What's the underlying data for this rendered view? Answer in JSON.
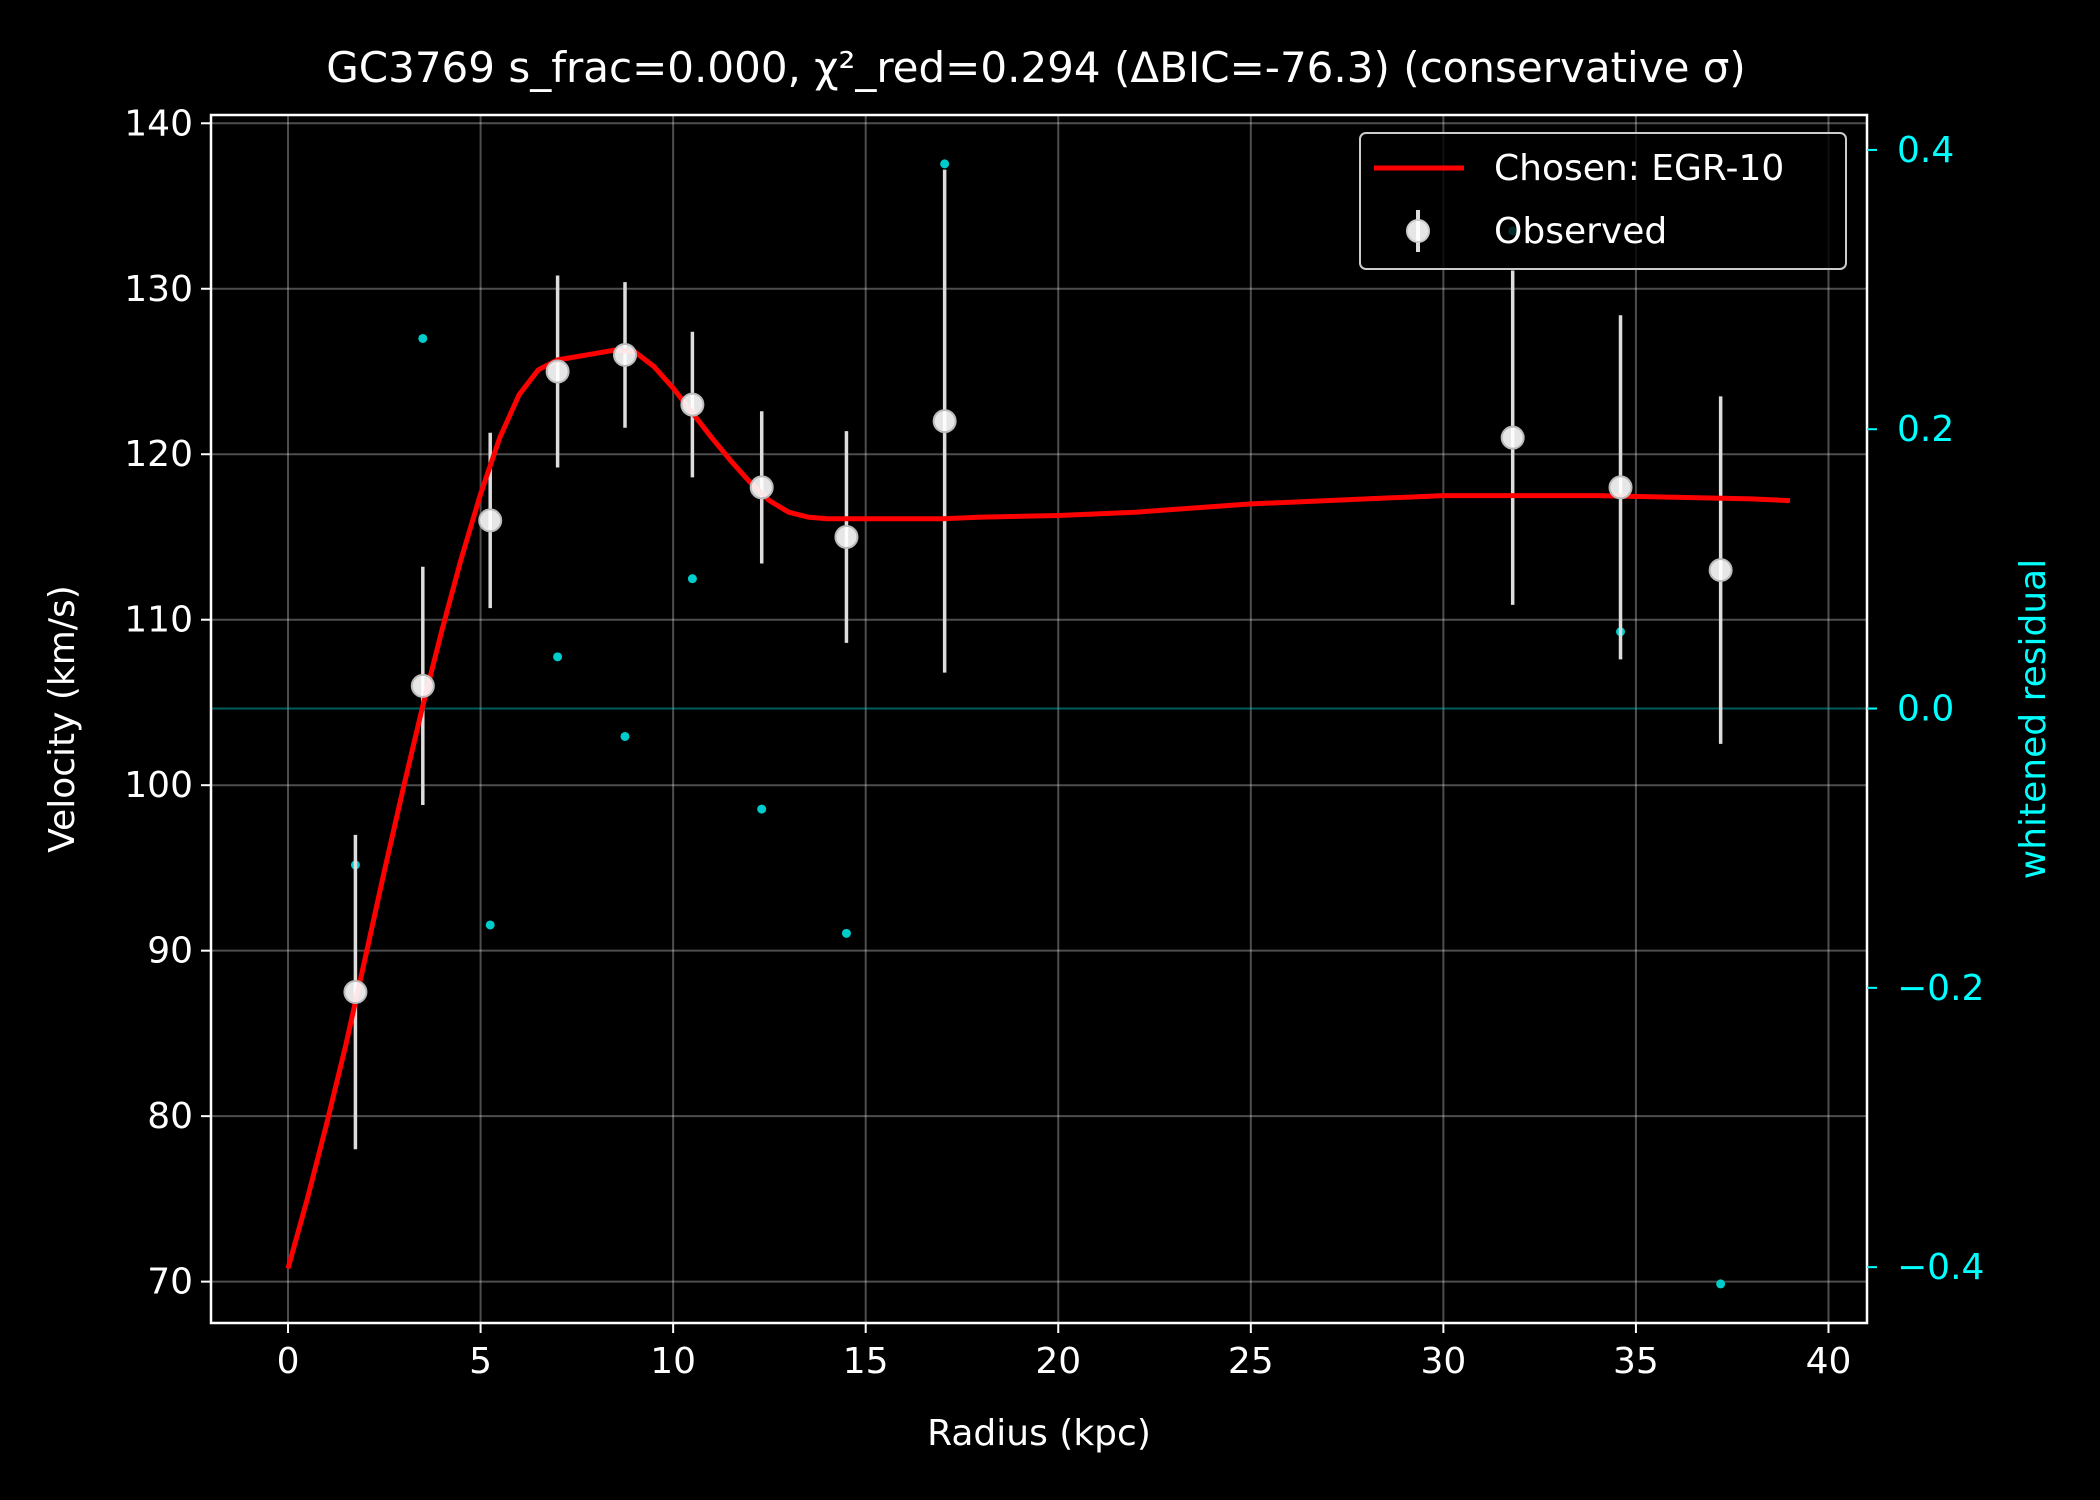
{
  "chart_data": {
    "type": "line",
    "title": "GC3769  s_frac=0.000, χ²_red=0.294  (ΔBIC=-76.3) (conservative σ)",
    "xlabel": "Radius (kpc)",
    "ylabel": "Velocity (km/s)",
    "y2label": "whitened residual",
    "xlim": [
      -2,
      41
    ],
    "ylim": [
      67.5,
      140.5
    ],
    "y2lim": [
      -0.44,
      0.425
    ],
    "xticks": [
      0,
      5,
      10,
      15,
      20,
      25,
      30,
      35,
      40
    ],
    "yticks": [
      70,
      80,
      90,
      100,
      110,
      120,
      130,
      140
    ],
    "y2ticks": [
      0.4,
      0.2,
      0.0,
      -0.2,
      -0.4
    ],
    "y2ticklabels": [
      "0.4",
      "0.2",
      "0.0",
      "−0.2",
      "−0.4"
    ],
    "grid": true,
    "legend_position": "top-right",
    "colors": {
      "background": "#000000",
      "fit": "#ff0000",
      "observed": "#ffffff",
      "residual": "#00cccc",
      "right_axis": "#00ffff",
      "text": "#ffffff"
    },
    "series": [
      {
        "name": "Chosen: EGR-10",
        "kind": "line",
        "x": [
          0,
          0.5,
          1,
          1.5,
          2,
          2.5,
          3,
          3.5,
          4,
          4.5,
          5,
          5.5,
          6,
          6.5,
          7,
          7.5,
          8,
          8.5,
          9,
          9.5,
          10,
          10.5,
          11,
          11.5,
          12,
          12.5,
          13,
          13.5,
          14,
          14.5,
          15,
          16,
          17,
          18,
          20,
          22,
          25,
          28,
          30,
          32,
          34,
          36,
          38,
          39
        ],
        "y": [
          70.8,
          75.0,
          79.5,
          84.3,
          89.5,
          94.8,
          99.9,
          104.8,
          109.4,
          113.7,
          117.6,
          121.0,
          123.6,
          125.1,
          125.7,
          125.9,
          126.1,
          126.3,
          126.2,
          125.3,
          124.0,
          122.5,
          121.0,
          119.6,
          118.3,
          117.2,
          116.5,
          116.2,
          116.1,
          116.1,
          116.1,
          116.1,
          116.1,
          116.2,
          116.3,
          116.5,
          117.0,
          117.3,
          117.5,
          117.5,
          117.5,
          117.4,
          117.3,
          117.2
        ]
      },
      {
        "name": "Observed",
        "kind": "errorbar",
        "x": [
          1.75,
          3.5,
          5.25,
          7.0,
          8.75,
          10.5,
          12.3,
          14.5,
          17.05,
          31.8,
          34.6,
          37.2
        ],
        "y": [
          87.5,
          106.0,
          116.0,
          125.0,
          126.0,
          123.0,
          118.0,
          115.0,
          122.0,
          121.0,
          118.0,
          113.0
        ],
        "yerr": [
          9.5,
          7.2,
          5.3,
          5.8,
          4.4,
          4.4,
          4.6,
          6.4,
          15.2,
          10.1,
          10.4,
          10.5
        ]
      },
      {
        "kind": "scatter",
        "axis": "right",
        "x": [
          1.75,
          3.5,
          5.25,
          7.0,
          8.75,
          10.5,
          12.3,
          14.5,
          17.05,
          31.8,
          34.6,
          37.2
        ],
        "y": [
          -0.112,
          0.265,
          -0.155,
          0.037,
          -0.02,
          0.093,
          -0.072,
          -0.161,
          0.39,
          0.342,
          0.055,
          -0.412
        ]
      }
    ]
  }
}
